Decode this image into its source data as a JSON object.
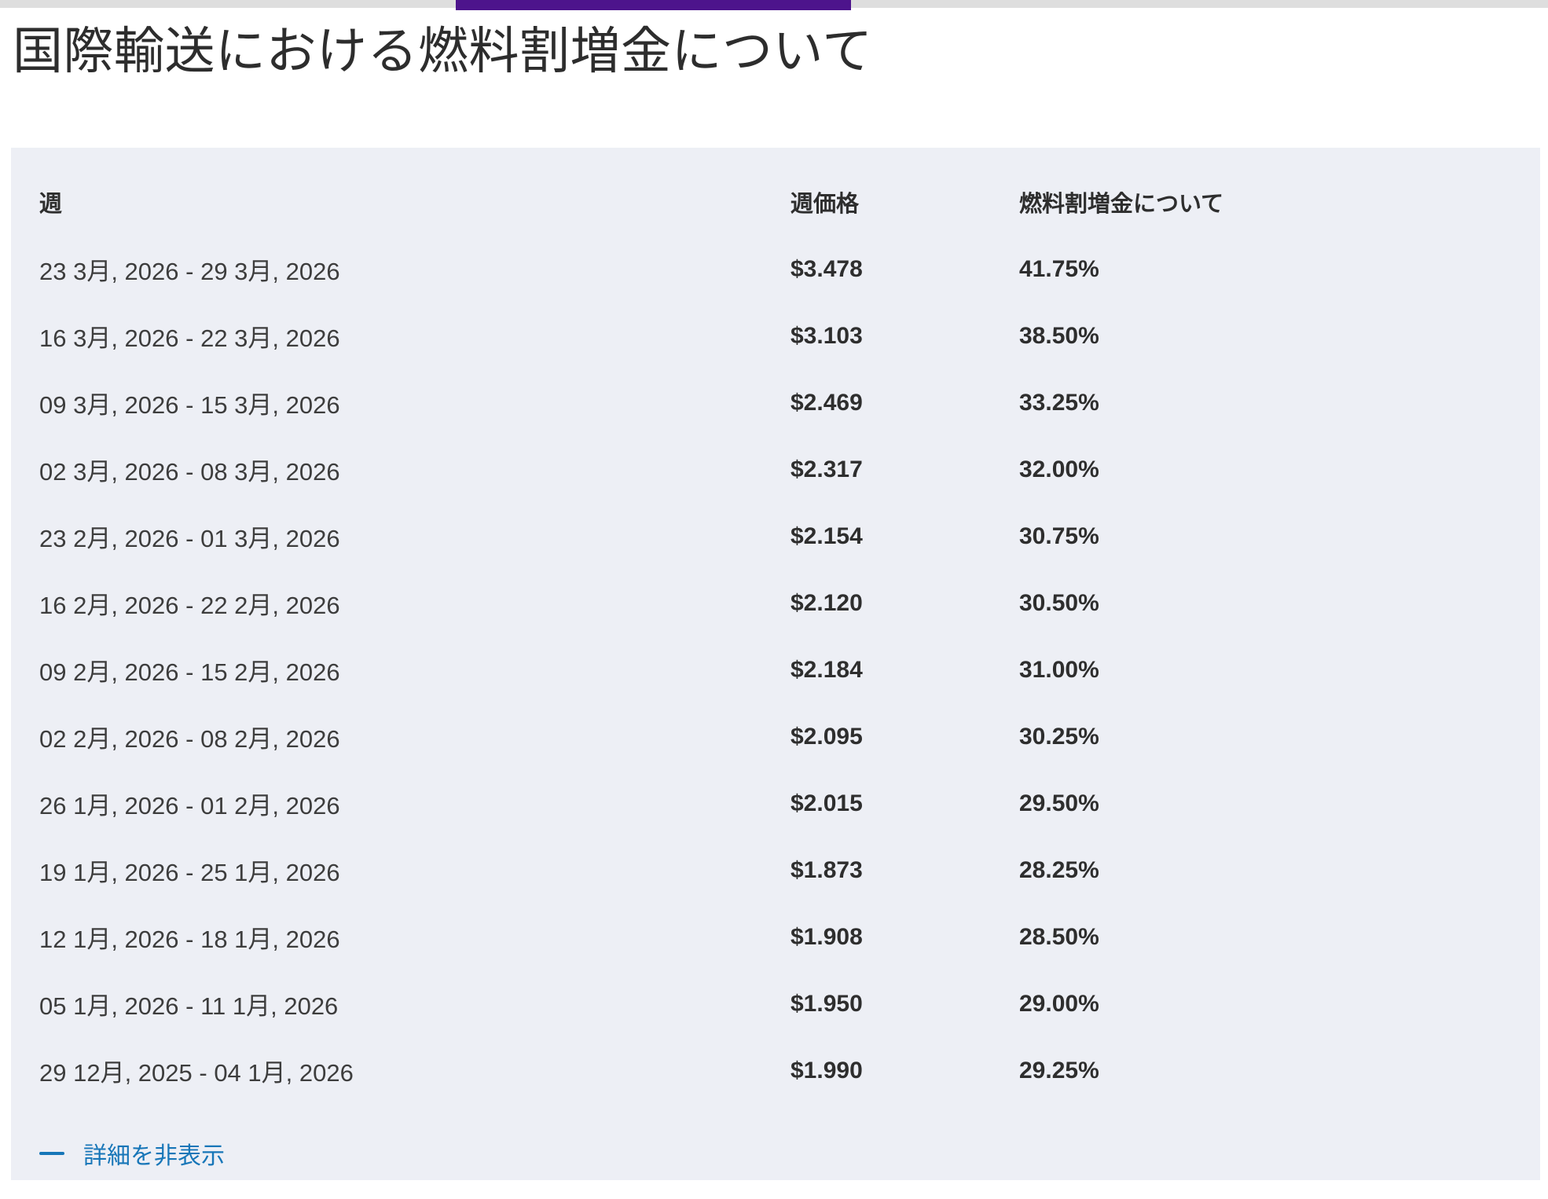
{
  "page": {
    "title": "国際輸送における燃料割増金について"
  },
  "decoration": {
    "accent_color": "#4D148C",
    "track_color": "#DEDEDE",
    "panel_background": "#EDEFF5"
  },
  "table": {
    "headers": {
      "week": "週",
      "price": "週価格",
      "surcharge": "燃料割増金について"
    },
    "rows": [
      {
        "week": "23 3月, 2026 - 29 3月, 2026",
        "price": "$3.478",
        "surcharge": "41.75%"
      },
      {
        "week": "16 3月, 2026 - 22 3月, 2026",
        "price": "$3.103",
        "surcharge": "38.50%"
      },
      {
        "week": "09 3月, 2026 - 15 3月, 2026",
        "price": "$2.469",
        "surcharge": "33.25%"
      },
      {
        "week": "02 3月, 2026 - 08 3月, 2026",
        "price": "$2.317",
        "surcharge": "32.00%"
      },
      {
        "week": "23 2月, 2026 - 01 3月, 2026",
        "price": "$2.154",
        "surcharge": "30.75%"
      },
      {
        "week": "16 2月, 2026 - 22 2月, 2026",
        "price": "$2.120",
        "surcharge": "30.50%"
      },
      {
        "week": "09 2月, 2026 - 15 2月, 2026",
        "price": "$2.184",
        "surcharge": "31.00%"
      },
      {
        "week": "02 2月, 2026 - 08 2月, 2026",
        "price": "$2.095",
        "surcharge": "30.25%"
      },
      {
        "week": "26 1月, 2026 - 01 2月, 2026",
        "price": "$2.015",
        "surcharge": "29.50%"
      },
      {
        "week": "19 1月, 2026 - 25 1月, 2026",
        "price": "$1.873",
        "surcharge": "28.25%"
      },
      {
        "week": "12 1月, 2026 - 18 1月, 2026",
        "price": "$1.908",
        "surcharge": "28.50%"
      },
      {
        "week": "05 1月, 2026 - 11 1月, 2026",
        "price": "$1.950",
        "surcharge": "29.00%"
      },
      {
        "week": "29 12月, 2025 - 04 1月, 2026",
        "price": "$1.990",
        "surcharge": "29.25%"
      }
    ]
  },
  "footer": {
    "collapse_label": "詳細を非表示",
    "link_color": "#1776B8"
  }
}
